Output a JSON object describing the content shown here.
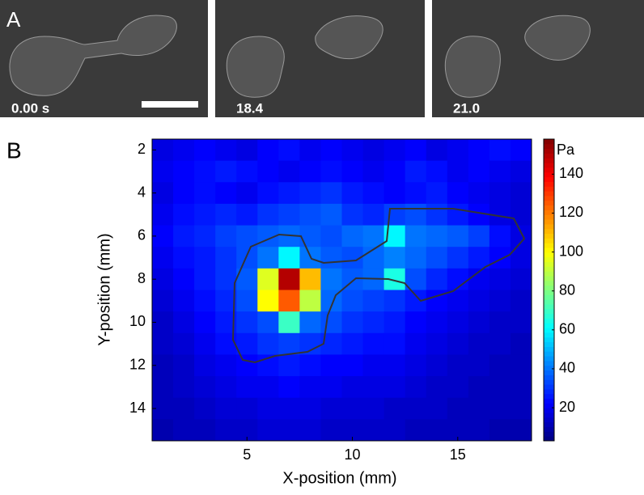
{
  "panel_labels": [
    "A",
    "B"
  ],
  "frames": [
    {
      "time": "0.00 s"
    },
    {
      "time": "18.4"
    },
    {
      "time": "21.0"
    }
  ],
  "chart_data": {
    "type": "heatmap",
    "xlabel": "X-position (mm)",
    "ylabel": "Y-position (mm)",
    "colorbar_label": "Pa",
    "x": [
      1,
      2,
      3,
      4,
      5,
      6,
      7,
      8,
      9,
      10,
      11,
      12,
      13,
      14,
      15,
      16,
      17,
      18
    ],
    "y": [
      2,
      3,
      4,
      5,
      6,
      7,
      8,
      9,
      10,
      11,
      12,
      13,
      14,
      15
    ],
    "xlim": [
      0.5,
      18.5
    ],
    "ylim": [
      1.5,
      15.5
    ],
    "xticks": [
      5,
      10,
      15
    ],
    "yticks": [
      2,
      4,
      6,
      8,
      10,
      12,
      14
    ],
    "clim": [
      3,
      158
    ],
    "cticks": [
      20,
      40,
      60,
      80,
      100,
      120,
      140
    ],
    "colormap": "jet",
    "z": [
      [
        18,
        20,
        22,
        20,
        18,
        22,
        24,
        20,
        22,
        20,
        18,
        20,
        22,
        18,
        20,
        22,
        24,
        22
      ],
      [
        20,
        22,
        24,
        26,
        24,
        22,
        20,
        22,
        24,
        22,
        20,
        22,
        26,
        24,
        20,
        22,
        20,
        18
      ],
      [
        18,
        22,
        24,
        22,
        20,
        24,
        26,
        28,
        30,
        26,
        24,
        22,
        24,
        26,
        22,
        20,
        18,
        16
      ],
      [
        20,
        24,
        26,
        28,
        26,
        30,
        32,
        34,
        36,
        30,
        28,
        32,
        34,
        30,
        26,
        22,
        18,
        16
      ],
      [
        22,
        26,
        28,
        32,
        34,
        36,
        38,
        36,
        34,
        38,
        40,
        60,
        40,
        38,
        36,
        32,
        24,
        18
      ],
      [
        20,
        24,
        26,
        30,
        34,
        40,
        60,
        40,
        36,
        34,
        38,
        42,
        38,
        34,
        30,
        26,
        22,
        18
      ],
      [
        18,
        22,
        26,
        30,
        36,
        95,
        150,
        110,
        40,
        36,
        38,
        65,
        34,
        28,
        24,
        20,
        18,
        16
      ],
      [
        16,
        20,
        24,
        28,
        34,
        100,
        125,
        90,
        38,
        34,
        32,
        30,
        26,
        22,
        20,
        18,
        16,
        14
      ],
      [
        14,
        18,
        22,
        26,
        30,
        34,
        70,
        38,
        34,
        30,
        28,
        26,
        22,
        20,
        18,
        16,
        14,
        14
      ],
      [
        14,
        16,
        20,
        24,
        26,
        30,
        32,
        30,
        28,
        26,
        24,
        24,
        20,
        18,
        16,
        14,
        14,
        12
      ],
      [
        12,
        14,
        18,
        20,
        22,
        24,
        26,
        24,
        22,
        22,
        20,
        20,
        18,
        16,
        14,
        14,
        12,
        12
      ],
      [
        12,
        14,
        16,
        18,
        20,
        20,
        22,
        20,
        20,
        18,
        18,
        18,
        16,
        14,
        14,
        12,
        12,
        12
      ],
      [
        12,
        12,
        14,
        16,
        16,
        18,
        18,
        18,
        16,
        16,
        16,
        14,
        14,
        14,
        12,
        12,
        12,
        12
      ],
      [
        10,
        12,
        12,
        14,
        14,
        16,
        16,
        16,
        14,
        14,
        14,
        14,
        12,
        12,
        12,
        12,
        10,
        10
      ]
    ]
  }
}
